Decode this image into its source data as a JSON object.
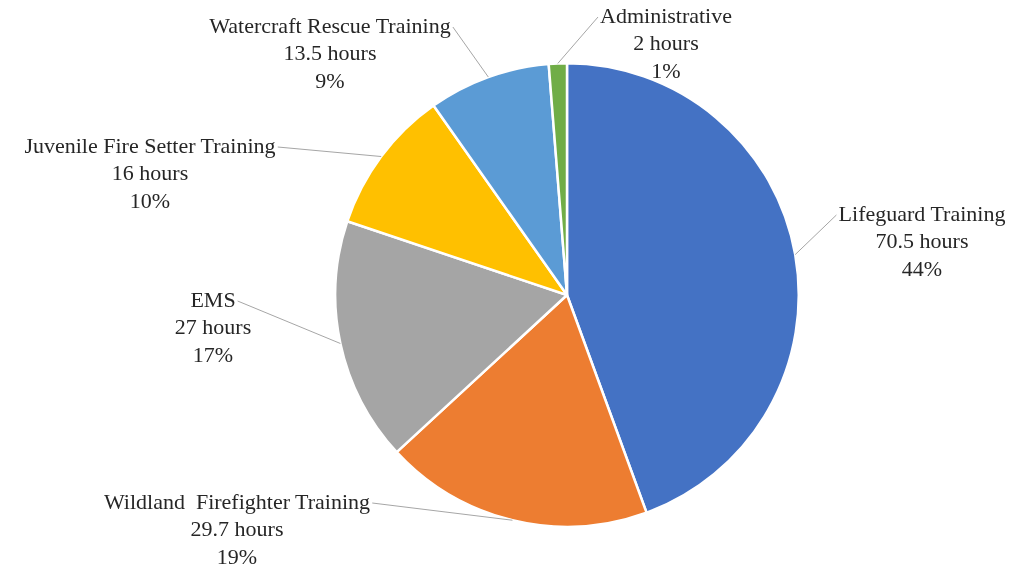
{
  "chart_data": {
    "type": "pie",
    "categories": [
      "Lifeguard Training",
      "Wildland  Firefighter Training",
      "EMS",
      "Juvenile Fire Setter Training",
      "Watercraft Rescue Training",
      "Administrative"
    ],
    "values": [
      70.5,
      29.7,
      27,
      16,
      13.5,
      2
    ],
    "value_labels": [
      "70.5 hours\n44%",
      "29.7 hours\n19%",
      "27 hours\n17%",
      "16 hours\n10%",
      "13.5 hours\n9%",
      "2 hours\n1%"
    ],
    "colors": [
      "#4472c4",
      "#ed7d31",
      "#a5a5a5",
      "#ffc000",
      "#5b9bd5",
      "#70ad47"
    ],
    "legend": false
  }
}
